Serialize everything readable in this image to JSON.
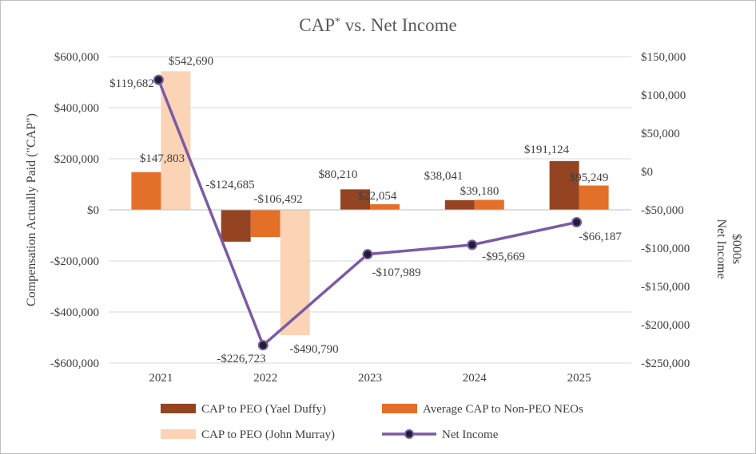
{
  "chart_data": {
    "type": "bar",
    "title": "CAP",
    "title_superscript": "*",
    "title_suffix": " vs. Net Income",
    "categories": [
      "2021",
      "2022",
      "2023",
      "2024",
      "2025"
    ],
    "ylabel": "Compensation Actually Paid (\"CAP\")",
    "y2label_line1": "Net Income",
    "y2label_line2": "$000s",
    "ylim": [
      -600000,
      600000
    ],
    "y2lim": [
      -250000,
      150000
    ],
    "yticks": [
      {
        "value": 600000,
        "label": "$600,000"
      },
      {
        "value": 400000,
        "label": "$400,000"
      },
      {
        "value": 200000,
        "label": "$200,000"
      },
      {
        "value": 0,
        "label": "$0"
      },
      {
        "value": -200000,
        "label": "-$200,000"
      },
      {
        "value": -400000,
        "label": "-$400,000"
      },
      {
        "value": -600000,
        "label": "-$600,000"
      }
    ],
    "y2ticks": [
      {
        "value": 150000,
        "label": "$150,000"
      },
      {
        "value": 100000,
        "label": "$100,000"
      },
      {
        "value": 50000,
        "label": "$50,000"
      },
      {
        "value": 0,
        "label": "$0"
      },
      {
        "value": -50000,
        "label": "-$50,000"
      },
      {
        "value": -100000,
        "label": "-$100,000"
      },
      {
        "value": -150000,
        "label": "-$150,000"
      },
      {
        "value": -200000,
        "label": "-$200,000"
      },
      {
        "value": -250000,
        "label": "-$250,000"
      }
    ],
    "series": [
      {
        "name": "CAP to PEO (Yael Duffy)",
        "kind": "bar",
        "axis": "left",
        "color": "#944420",
        "values": [
          null,
          -124685,
          80210,
          38041,
          191124
        ],
        "labels": [
          null,
          "-$124,685",
          "$80,210",
          "$38,041",
          "$191,124"
        ]
      },
      {
        "name": "Average CAP to Non-PEO NEOs",
        "kind": "bar",
        "axis": "left",
        "color": "#e46f29",
        "values": [
          147803,
          -106492,
          22054,
          39180,
          95249
        ],
        "labels": [
          "$147,803",
          "-$106,492",
          "$22,054",
          "$39,180",
          "$95,249"
        ]
      },
      {
        "name": "CAP to PEO (John Murray)",
        "kind": "bar",
        "axis": "left",
        "color": "#fbd3b5",
        "values": [
          542690,
          -490790,
          null,
          null,
          null
        ],
        "labels": [
          "$542,690",
          "-$490,790",
          null,
          null,
          null
        ]
      },
      {
        "name": "Net Income",
        "kind": "line",
        "axis": "right",
        "color": "#7b5aa6",
        "values": [
          119682,
          -226723,
          -107989,
          -95669,
          -66187
        ],
        "labels": [
          "$119,682",
          "-$226,723",
          "-$107,989",
          "-$95,669",
          "-$66,187"
        ]
      }
    ],
    "legend_position": "bottom"
  }
}
